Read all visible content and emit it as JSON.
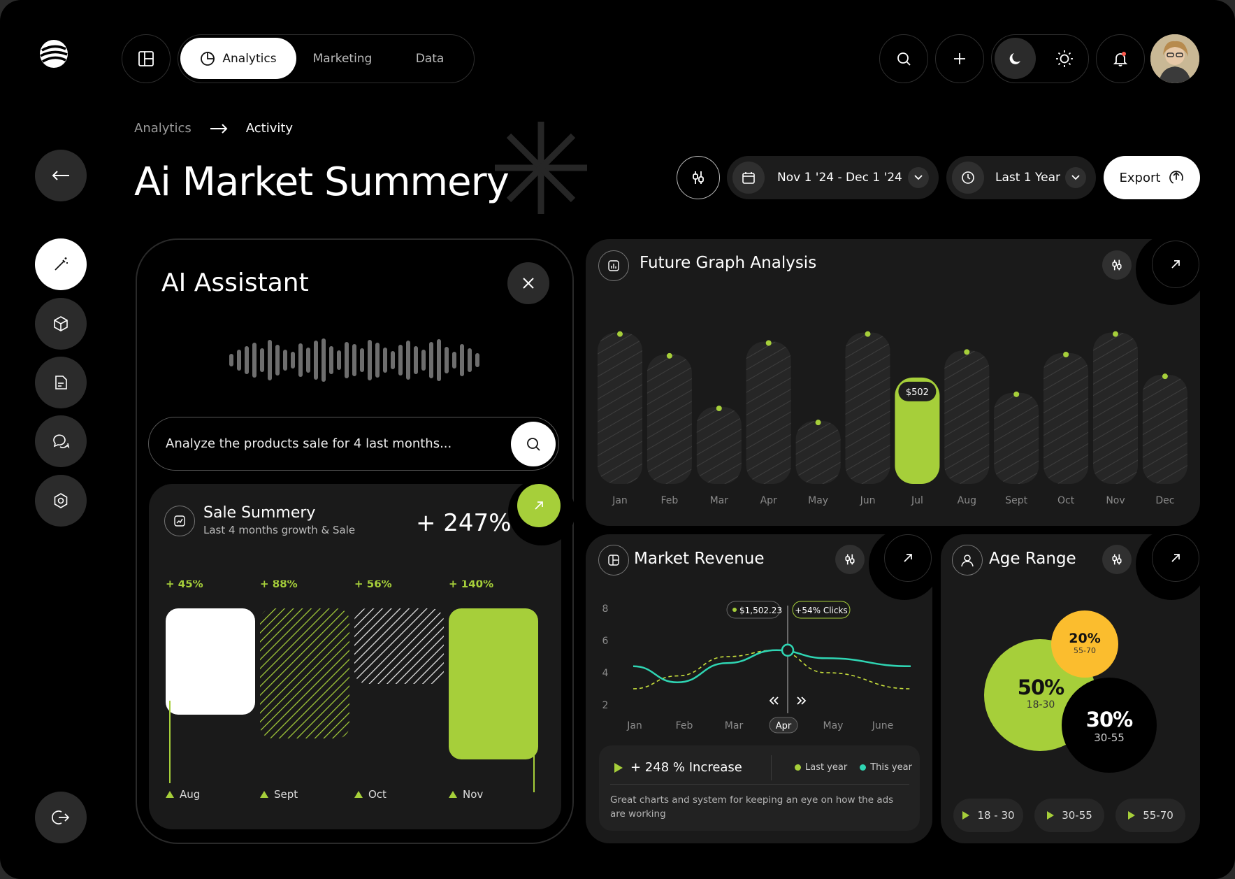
{
  "nav": {
    "tabs": [
      {
        "label": "Analytics",
        "active": true
      },
      {
        "label": "Marketing",
        "active": false
      },
      {
        "label": "Data",
        "active": false
      }
    ],
    "icons": [
      "logo-icon",
      "layout-icon",
      "search-icon",
      "plus-icon",
      "moon-icon",
      "sun-icon",
      "bell-icon",
      "avatar"
    ]
  },
  "breadcrumb": {
    "parent": "Analytics",
    "current": "Activity"
  },
  "page_title": "Ai Market Summery",
  "filters": {
    "date_range": "Nov 1 '24 - Dec 1 '24",
    "period": "Last 1 Year",
    "export_label": "Export"
  },
  "ai_assistant": {
    "title": "AI Assistant",
    "prompt_value": "Analyze the products sale for 4 last months...",
    "sale_summary": {
      "title": "Sale Summery",
      "subtitle": "Last 4 months growth & Sale",
      "total_growth": "+ 247%",
      "chart_data": {
        "type": "bar",
        "categories": [
          "Aug",
          "Sept",
          "Oct",
          "Nov"
        ],
        "growth_labels": [
          "+ 45%",
          "+ 88%",
          "+ 56%",
          "+ 140%"
        ]
      }
    }
  },
  "future_graph": {
    "title": "Future Graph Analysis",
    "chart_data": {
      "type": "bar",
      "categories": [
        "Jan",
        "Feb",
        "Mar",
        "Apr",
        "May",
        "Jun",
        "Jul",
        "Aug",
        "Sept",
        "Oct",
        "Nov",
        "Dec"
      ],
      "values": [
        590,
        505,
        300,
        555,
        245,
        590,
        415,
        520,
        355,
        510,
        590,
        425
      ],
      "highlight": {
        "category": "Jul",
        "label": "$502"
      }
    }
  },
  "market_revenue": {
    "title": "Market Revenue",
    "chart_data": {
      "type": "line",
      "x": [
        "Jan",
        "Feb",
        "Mar",
        "Apr",
        "May",
        "June"
      ],
      "y_ticks": [
        "8",
        "6",
        "4",
        "2"
      ],
      "ylim": [
        2,
        8
      ],
      "series": [
        {
          "name": "This year",
          "color": "#2fd5b3",
          "values": [
            4.4,
            3.4,
            4.6,
            5.4,
            4.9,
            4.4
          ]
        },
        {
          "name": "Last year",
          "color": "#c8e03c",
          "values": [
            3.0,
            3.8,
            5.0,
            5.4,
            4.0,
            3.0
          ]
        }
      ],
      "selected_x": "Apr",
      "annotations": [
        "$1,502.23",
        "+54% Clicks"
      ]
    },
    "increase_label": "+ 248 % Increase",
    "legend": [
      "Last year",
      "This year"
    ],
    "description": "Great charts and system for keeping an eye on how the ads are working"
  },
  "age_range": {
    "title": "Age Range",
    "chart_data": {
      "type": "bubble",
      "segments": [
        {
          "label": "18-30",
          "value": "50%",
          "color": "#a6cf3a"
        },
        {
          "label": "55-70",
          "value": "20%",
          "color": "#fbbd2e"
        },
        {
          "label": "30-55",
          "value": "30%",
          "color": "#000000"
        }
      ]
    },
    "buttons": [
      "18 - 30",
      "30-55",
      "55-70"
    ]
  },
  "colors": {
    "accent": "#a6cf3a",
    "teal": "#2fd5b3",
    "yellow": "#fbbd2e",
    "background": "#000000",
    "card": "#1a1a1a"
  }
}
